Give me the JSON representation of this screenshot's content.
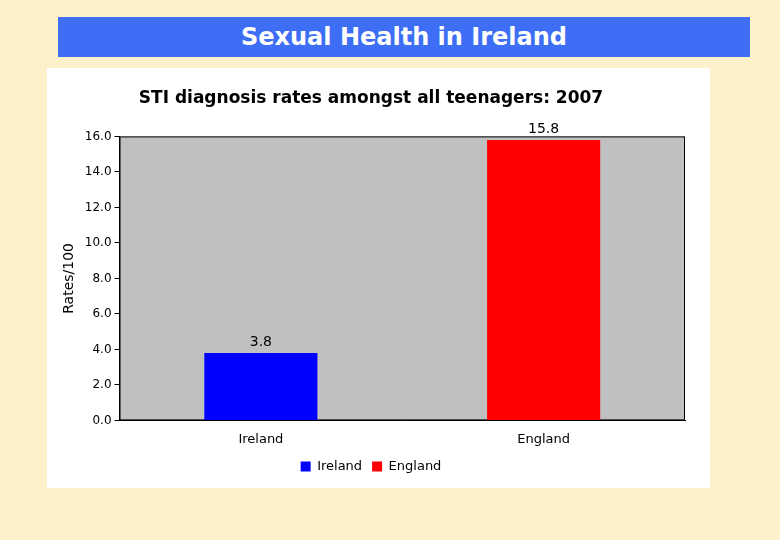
{
  "header": {
    "title": "Sexual Health in Ireland"
  },
  "chart_data": {
    "type": "bar",
    "title": "STI diagnosis rates amongst all teenagers: 2007",
    "y_label": "Rates/100",
    "categories": [
      "Ireland",
      "England"
    ],
    "values": [
      3.8,
      15.8
    ],
    "colors": [
      "#0000ff",
      "#ff0000"
    ],
    "ylim": [
      0,
      16
    ],
    "yticks": [
      {
        "value": 0,
        "label": "0.0"
      },
      {
        "value": 2,
        "label": "2.0"
      },
      {
        "value": 4,
        "label": "4.0"
      },
      {
        "value": 6,
        "label": "6.0"
      },
      {
        "value": 8,
        "label": "8.0"
      },
      {
        "value": 10,
        "label": "10.0"
      },
      {
        "value": 12,
        "label": "12.0"
      },
      {
        "value": 14,
        "label": "14.0"
      },
      {
        "value": 16,
        "label": "16.0"
      }
    ],
    "grid": false,
    "data_labels": true,
    "legend": "bottom"
  }
}
